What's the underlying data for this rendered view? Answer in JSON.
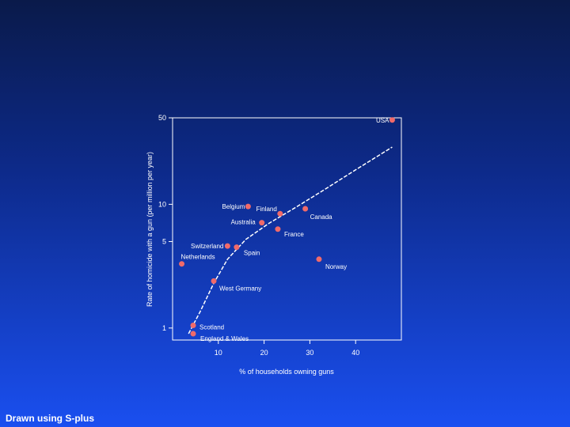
{
  "chart_data": {
    "type": "scatter",
    "xlabel": "% of households owning guns",
    "ylabel": "Rate of homicide with a gun (per million per year)",
    "x_ticks": [
      10,
      20,
      30,
      40
    ],
    "y_ticks": [
      1,
      5,
      10,
      50
    ],
    "y_scale": "log",
    "xlim": [
      0,
      50
    ],
    "ylim": [
      0.8,
      50
    ],
    "grid": false,
    "point_color": "#f06a6a",
    "line_style": "dashed",
    "points": [
      {
        "label": "USA",
        "x": 48,
        "y": 48
      },
      {
        "label": "Belgium",
        "x": 16.5,
        "y": 9.6
      },
      {
        "label": "Finland",
        "x": 23.5,
        "y": 8.4
      },
      {
        "label": "Canada",
        "x": 29,
        "y": 9.2
      },
      {
        "label": "Australia",
        "x": 19.5,
        "y": 7.1
      },
      {
        "label": "France",
        "x": 23,
        "y": 6.3
      },
      {
        "label": "Switzerland",
        "x": 12,
        "y": 4.6
      },
      {
        "label": "Spain",
        "x": 14,
        "y": 4.5
      },
      {
        "label": "Netherlands",
        "x": 2,
        "y": 3.3
      },
      {
        "label": "Norway",
        "x": 32,
        "y": 3.6
      },
      {
        "label": "West Germany",
        "x": 9,
        "y": 2.4
      },
      {
        "label": "Scotland",
        "x": 4.5,
        "y": 1.05
      },
      {
        "label": "England & Wales",
        "x": 4.5,
        "y": 0.9
      }
    ],
    "curve": [
      [
        3.5,
        0.9
      ],
      [
        6,
        1.35
      ],
      [
        9,
        2.3
      ],
      [
        12,
        3.6
      ],
      [
        16,
        5.2
      ],
      [
        21,
        7.0
      ],
      [
        27,
        9.5
      ],
      [
        33,
        13
      ],
      [
        40,
        19
      ],
      [
        48,
        29
      ]
    ]
  },
  "footer": {
    "credit": "Drawn using S-plus"
  }
}
